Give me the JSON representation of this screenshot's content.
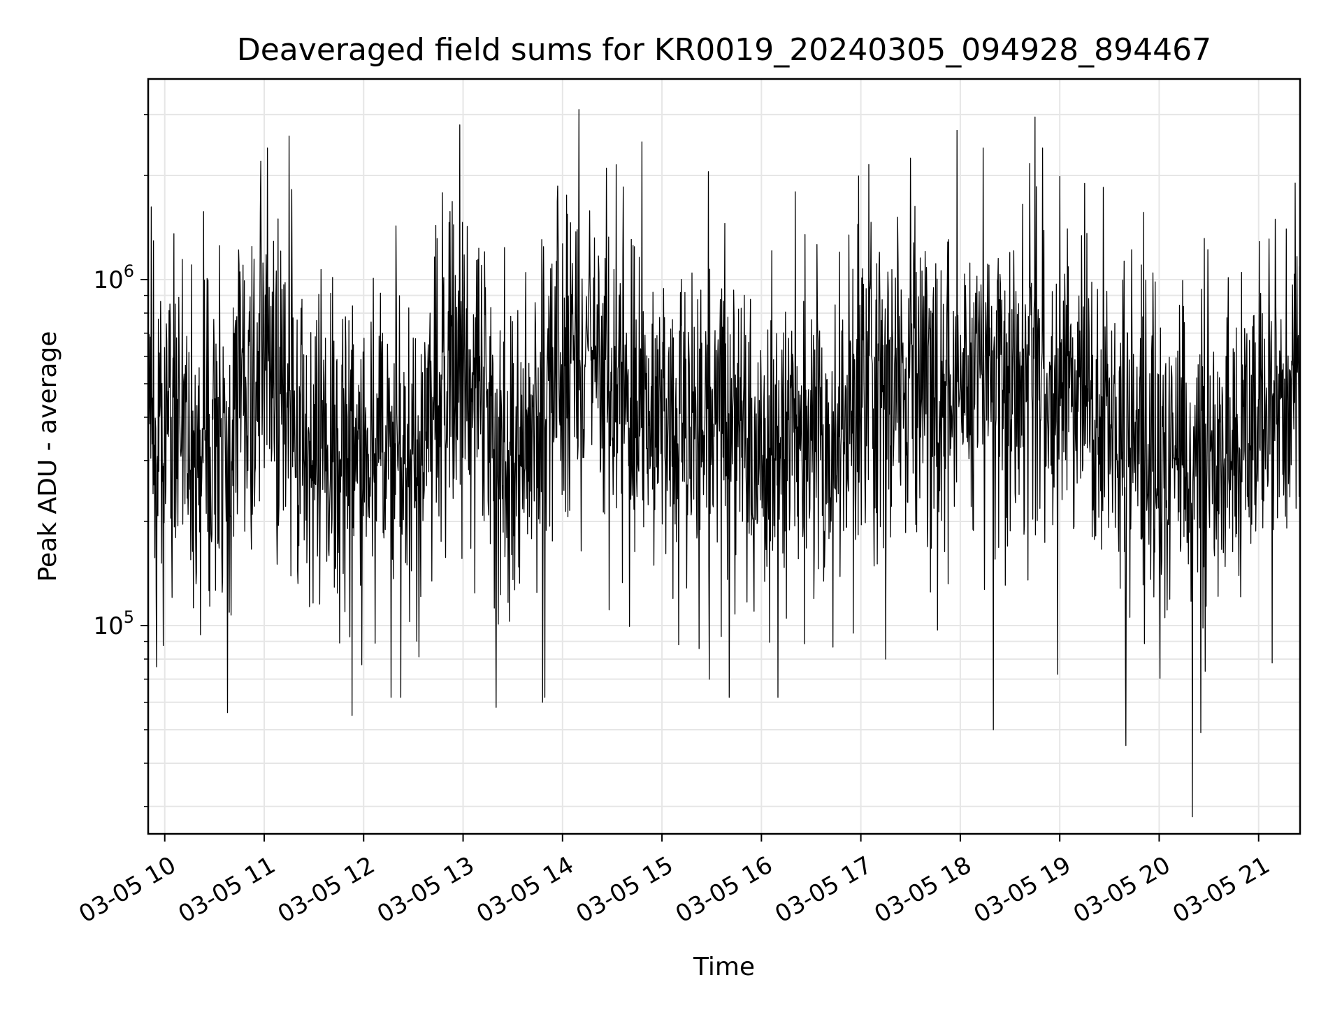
{
  "chart_data": {
    "type": "line",
    "title": "Deaveraged field sums for KR0019_20240305_094928_894467",
    "xlabel": "Time",
    "ylabel": "Peak ADU - average",
    "x_start": "2024-03-05 09:50",
    "x_end": "2024-03-05 21:25",
    "xlim": [
      "2024-03-05 09:50",
      "2024-03-05 21:25"
    ],
    "x_ticks": [
      {
        "date": "2024-03-05 10:00",
        "label": "03-05 10"
      },
      {
        "date": "2024-03-05 11:00",
        "label": "03-05 11"
      },
      {
        "date": "2024-03-05 12:00",
        "label": "03-05 12"
      },
      {
        "date": "2024-03-05 13:00",
        "label": "03-05 13"
      },
      {
        "date": "2024-03-05 14:00",
        "label": "03-05 14"
      },
      {
        "date": "2024-03-05 15:00",
        "label": "03-05 15"
      },
      {
        "date": "2024-03-05 16:00",
        "label": "03-05 16"
      },
      {
        "date": "2024-03-05 17:00",
        "label": "03-05 17"
      },
      {
        "date": "2024-03-05 18:00",
        "label": "03-05 18"
      },
      {
        "date": "2024-03-05 19:00",
        "label": "03-05 19"
      },
      {
        "date": "2024-03-05 20:00",
        "label": "03-05 20"
      },
      {
        "date": "2024-03-05 21:00",
        "label": "03-05 21"
      }
    ],
    "x_tick_rotation_deg": 30,
    "y_scale": "log",
    "ylim": [
      25000,
      3800000
    ],
    "y_ticks": [
      {
        "value": 100000,
        "base": "10",
        "exp": "5"
      },
      {
        "value": 1000000,
        "base": "10",
        "exp": "6"
      }
    ],
    "grid": true,
    "line_color": "#000000",
    "grid_color": "#e6e6e6",
    "trend": [
      {
        "time": "2024-03-05 09:50",
        "y": 380000
      },
      {
        "time": "2024-03-05 10:30",
        "y": 290000
      },
      {
        "time": "2024-03-05 11:00",
        "y": 560000
      },
      {
        "time": "2024-03-05 11:40",
        "y": 290000
      },
      {
        "time": "2024-03-05 12:30",
        "y": 330000
      },
      {
        "time": "2024-03-05 13:00",
        "y": 560000
      },
      {
        "time": "2024-03-05 13:30",
        "y": 330000
      },
      {
        "time": "2024-03-05 14:15",
        "y": 620000
      },
      {
        "time": "2024-03-05 15:00",
        "y": 410000
      },
      {
        "time": "2024-03-05 15:40",
        "y": 330000
      },
      {
        "time": "2024-03-05 16:30",
        "y": 360000
      },
      {
        "time": "2024-03-05 17:30",
        "y": 520000
      },
      {
        "time": "2024-03-05 18:30",
        "y": 500000
      },
      {
        "time": "2024-03-05 19:30",
        "y": 420000
      },
      {
        "time": "2024-03-05 20:20",
        "y": 260000
      },
      {
        "time": "2024-03-05 21:25",
        "y": 520000
      }
    ],
    "peaks": [
      {
        "time": "2024-03-05 14:10",
        "y": 3100000
      },
      {
        "time": "2024-03-05 18:45",
        "y": 2950000
      },
      {
        "time": "2024-03-05 12:58",
        "y": 2800000
      },
      {
        "time": "2024-03-05 17:58",
        "y": 2700000
      },
      {
        "time": "2024-03-05 11:15",
        "y": 2600000
      },
      {
        "time": "2024-03-05 14:48",
        "y": 2500000
      },
      {
        "time": "2024-03-05 10:58",
        "y": 2200000
      },
      {
        "time": "2024-03-05 15:28",
        "y": 2050000
      },
      {
        "time": "2024-03-05 21:22",
        "y": 1900000
      }
    ],
    "troughs": [
      {
        "time": "2024-03-05 20:20",
        "y": 28000
      },
      {
        "time": "2024-03-05 19:40",
        "y": 45000
      },
      {
        "time": "2024-03-05 18:20",
        "y": 50000
      },
      {
        "time": "2024-03-05 20:25",
        "y": 49000
      },
      {
        "time": "2024-03-05 10:38",
        "y": 56000
      },
      {
        "time": "2024-03-05 11:53",
        "y": 55000
      },
      {
        "time": "2024-03-05 13:20",
        "y": 58000
      },
      {
        "time": "2024-03-05 13:48",
        "y": 60000
      },
      {
        "time": "2024-03-05 09:55",
        "y": 76000
      },
      {
        "time": "2024-03-05 15:10",
        "y": 88000
      },
      {
        "time": "2024-03-05 16:10",
        "y": 62000
      },
      {
        "time": "2024-03-05 17:15",
        "y": 80000
      }
    ]
  }
}
